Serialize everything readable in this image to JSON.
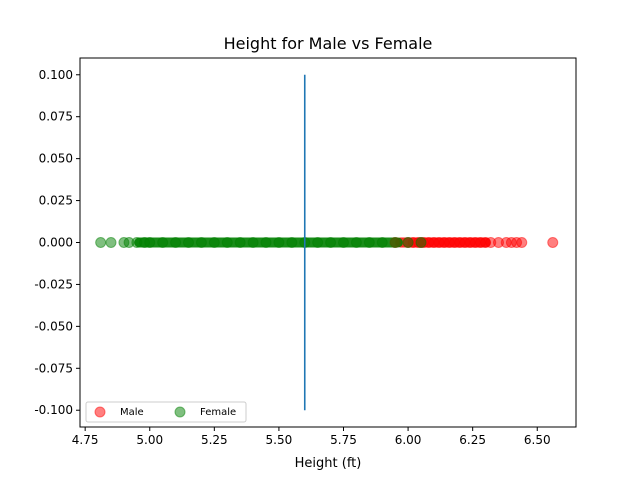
{
  "chart_data": {
    "type": "scatter",
    "title": "Height for Male vs Female",
    "xlabel": "Height (ft)",
    "ylabel": "",
    "xlim": [
      4.73,
      6.65
    ],
    "ylim": [
      -0.11,
      0.11
    ],
    "x_ticks": [
      "4.75",
      "5.00",
      "5.25",
      "5.50",
      "5.75",
      "6.00",
      "6.25",
      "6.50"
    ],
    "y_ticks": [
      "0.100",
      "0.075",
      "0.050",
      "0.025",
      "0.000",
      "-0.025",
      "-0.050",
      "-0.075",
      "-0.100"
    ],
    "grid": false,
    "legend_position": "lower-left",
    "series": [
      {
        "name": "Male",
        "color": "#ff0000",
        "y": 0.0,
        "x": [
          5.95,
          6.0,
          6.02,
          6.04,
          6.05,
          6.06,
          6.08,
          6.1,
          6.12,
          6.14,
          6.16,
          6.18,
          6.2,
          6.22,
          6.24,
          6.26,
          6.28,
          6.3,
          6.32,
          6.35,
          6.38,
          6.4,
          6.42,
          6.44,
          6.56
        ]
      },
      {
        "name": "Female",
        "color": "#008000",
        "y": 0.0,
        "x": [
          4.81,
          4.85,
          4.9,
          4.92,
          4.95,
          4.98,
          5.0,
          5.05,
          5.1,
          5.15,
          5.2,
          5.25,
          5.3,
          5.35,
          5.4,
          5.45,
          5.5,
          5.55,
          5.6,
          5.65,
          5.7,
          5.75,
          5.8,
          5.85,
          5.9,
          5.95,
          6.0,
          6.05
        ]
      }
    ],
    "vertical_line": {
      "x": 5.6,
      "y_from": -0.1,
      "y_to": 0.1,
      "color": "#1f77b4"
    },
    "dense_ranges": [
      {
        "series": "Male",
        "from": 5.95,
        "to": 6.32,
        "color": "#ff0000"
      },
      {
        "series": "Female",
        "from": 4.94,
        "to": 5.98,
        "color": "#008000"
      }
    ]
  }
}
